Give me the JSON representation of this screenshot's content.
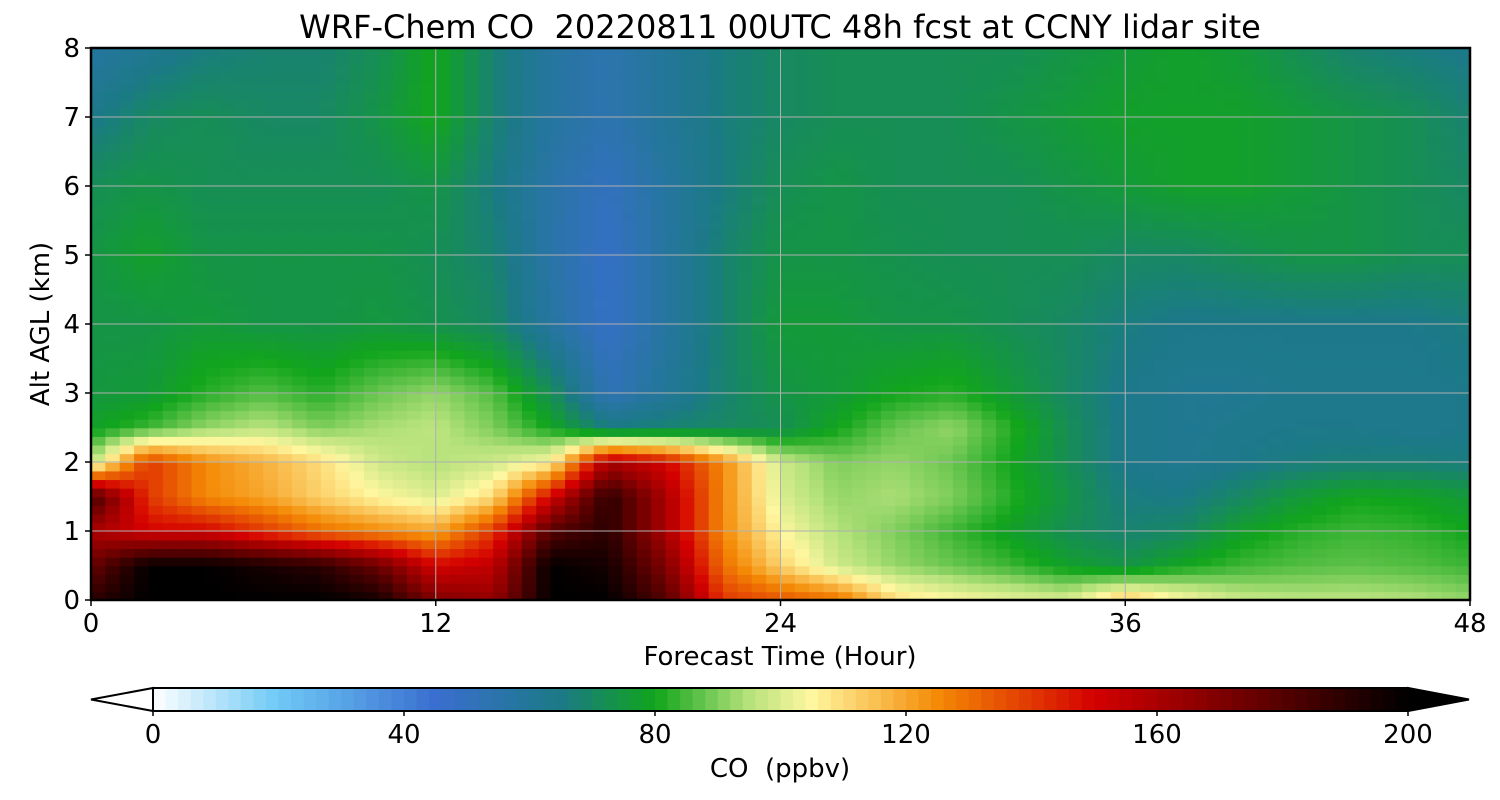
{
  "chart_data": {
    "type": "heatmap",
    "title": "WRF-Chem CO  20220811 00UTC 48h fcst at CCNY lidar site",
    "xlabel": "Forecast Time (Hour)",
    "ylabel": "Alt AGL (km)",
    "xlim": [
      0,
      48
    ],
    "ylim": [
      0,
      8
    ],
    "x_ticks": [
      0,
      12,
      24,
      36,
      48
    ],
    "y_ticks": [
      0,
      1,
      2,
      3,
      4,
      5,
      6,
      7,
      8
    ],
    "grid": true,
    "z_unit_label": "CO  (ppbv)",
    "colorbar": {
      "label": "CO  (ppbv)",
      "ticks": [
        0,
        40,
        80,
        120,
        160,
        200
      ],
      "range": [
        0,
        200
      ],
      "extend": "both",
      "orientation": "horizontal",
      "colors": [
        "#ffffff",
        "#6ec9f5",
        "#3a6ed0",
        "#1b7a86",
        "#11a51c",
        "#b6e27c",
        "#fff7a0",
        "#f48a05",
        "#d40000",
        "#000000"
      ],
      "color_stops": [
        0,
        20,
        45,
        65,
        80,
        95,
        105,
        125,
        150,
        200
      ]
    },
    "hours": [
      0,
      2,
      4,
      6,
      8,
      10,
      12,
      14,
      16,
      18,
      20,
      22,
      24,
      26,
      28,
      30,
      32,
      34,
      36,
      38,
      40,
      42,
      44,
      46,
      48
    ],
    "altitudes_km": [
      0,
      0.5,
      1,
      1.5,
      2,
      2.5,
      3,
      4,
      5,
      6,
      7,
      8
    ],
    "co_ppbv": [
      [
        190,
        200,
        200,
        200,
        200,
        195,
        170,
        165,
        200,
        200,
        180,
        140,
        135,
        130,
        110,
        105,
        102,
        100,
        115,
        105,
        98,
        96,
        96,
        95,
        92
      ],
      [
        175,
        200,
        200,
        195,
        190,
        175,
        150,
        155,
        200,
        195,
        170,
        130,
        112,
        98,
        92,
        88,
        84,
        78,
        74,
        80,
        84,
        86,
        87,
        86,
        84
      ],
      [
        160,
        150,
        150,
        140,
        130,
        125,
        120,
        140,
        180,
        190,
        160,
        125,
        105,
        95,
        90,
        84,
        78,
        72,
        68,
        70,
        78,
        82,
        84,
        83,
        80
      ],
      [
        185,
        140,
        125,
        120,
        112,
        105,
        100,
        110,
        150,
        190,
        160,
        125,
        100,
        92,
        94,
        90,
        82,
        74,
        66,
        65,
        70,
        76,
        80,
        79,
        76
      ],
      [
        95,
        140,
        125,
        118,
        110,
        98,
        95,
        98,
        105,
        160,
        150,
        125,
        98,
        90,
        92,
        88,
        80,
        72,
        64,
        62,
        64,
        66,
        67,
        67,
        66
      ],
      [
        78,
        84,
        92,
        96,
        90,
        94,
        96,
        90,
        80,
        66,
        68,
        70,
        72,
        80,
        88,
        92,
        82,
        72,
        64,
        62,
        63,
        64,
        64,
        63,
        64
      ],
      [
        75,
        76,
        82,
        86,
        82,
        88,
        92,
        86,
        72,
        52,
        60,
        68,
        74,
        76,
        80,
        82,
        76,
        70,
        64,
        62,
        62,
        63,
        63,
        63,
        64
      ],
      [
        74,
        74,
        76,
        74,
        74,
        75,
        73,
        70,
        58,
        48,
        58,
        68,
        76,
        76,
        74,
        74,
        72,
        70,
        66,
        64,
        64,
        64,
        64,
        64,
        66
      ],
      [
        74,
        78,
        74,
        74,
        74,
        74,
        72,
        68,
        56,
        48,
        58,
        68,
        74,
        74,
        73,
        72,
        72,
        72,
        70,
        70,
        72,
        74,
        74,
        72,
        72
      ],
      [
        72,
        74,
        72,
        72,
        72,
        72,
        74,
        66,
        56,
        50,
        58,
        66,
        72,
        74,
        72,
        72,
        72,
        74,
        76,
        78,
        78,
        76,
        74,
        72,
        70
      ],
      [
        64,
        70,
        72,
        70,
        70,
        74,
        80,
        68,
        58,
        54,
        60,
        66,
        70,
        72,
        72,
        72,
        74,
        76,
        78,
        78,
        78,
        76,
        74,
        72,
        68
      ],
      [
        58,
        62,
        66,
        68,
        68,
        72,
        80,
        68,
        58,
        54,
        60,
        66,
        70,
        72,
        72,
        72,
        72,
        74,
        76,
        78,
        76,
        72,
        68,
        66,
        64
      ]
    ]
  }
}
